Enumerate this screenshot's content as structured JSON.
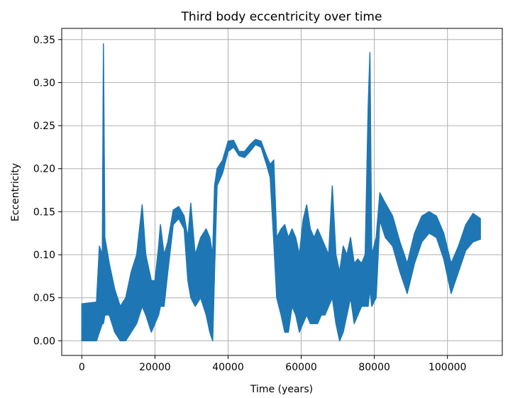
{
  "chart_data": {
    "type": "line",
    "title": "Third body eccentricity over time",
    "xlabel": "Time (years)",
    "ylabel": "Eccentricity",
    "xlim": [
      -5500,
      115000
    ],
    "ylim": [
      -0.017,
      0.363
    ],
    "grid": true,
    "legend": "none",
    "xticks": [
      {
        "value": 0,
        "label": "0"
      },
      {
        "value": 20000,
        "label": "20000"
      },
      {
        "value": 40000,
        "label": "40000"
      },
      {
        "value": 60000,
        "label": "60000"
      },
      {
        "value": 80000,
        "label": "80000"
      },
      {
        "value": 100000,
        "label": "100000"
      }
    ],
    "yticks": [
      {
        "value": 0.0,
        "label": "0.00"
      },
      {
        "value": 0.05,
        "label": "0.05"
      },
      {
        "value": 0.1,
        "label": "0.10"
      },
      {
        "value": 0.15,
        "label": "0.15"
      },
      {
        "value": 0.2,
        "label": "0.20"
      },
      {
        "value": 0.25,
        "label": "0.25"
      },
      {
        "value": 0.3,
        "label": "0.30"
      },
      {
        "value": 0.35,
        "label": "0.35"
      }
    ],
    "series": [
      {
        "color": "#1f77b4",
        "envelope": [
          [
            0,
            0.0,
            0.043
          ],
          [
            2000,
            0.0,
            0.044
          ],
          [
            4000,
            0.0,
            0.045
          ],
          [
            4800,
            0.01,
            0.11
          ],
          [
            5600,
            0.02,
            0.1
          ],
          [
            5900,
            0.02,
            0.345
          ],
          [
            6300,
            0.03,
            0.12
          ],
          [
            7500,
            0.03,
            0.09
          ],
          [
            9000,
            0.01,
            0.06
          ],
          [
            10500,
            0.0,
            0.04
          ],
          [
            12000,
            0.0,
            0.05
          ],
          [
            13500,
            0.01,
            0.08
          ],
          [
            15000,
            0.02,
            0.1
          ],
          [
            16500,
            0.04,
            0.158
          ],
          [
            17500,
            0.03,
            0.1
          ],
          [
            19000,
            0.01,
            0.07
          ],
          [
            20000,
            0.02,
            0.07
          ],
          [
            21000,
            0.03,
            0.11
          ],
          [
            21500,
            0.04,
            0.135
          ],
          [
            22500,
            0.04,
            0.1
          ],
          [
            23500,
            0.08,
            0.115
          ],
          [
            25000,
            0.135,
            0.152
          ],
          [
            26500,
            0.142,
            0.156
          ],
          [
            28000,
            0.13,
            0.145
          ],
          [
            29000,
            0.07,
            0.12
          ],
          [
            29800,
            0.05,
            0.16
          ],
          [
            31000,
            0.04,
            0.1
          ],
          [
            32500,
            0.05,
            0.12
          ],
          [
            34000,
            0.03,
            0.13
          ],
          [
            35000,
            0.01,
            0.12
          ],
          [
            35800,
            0.0,
            0.1
          ],
          [
            36300,
            0.08,
            0.18
          ],
          [
            37000,
            0.18,
            0.2
          ],
          [
            38500,
            0.195,
            0.21
          ],
          [
            40000,
            0.22,
            0.232
          ],
          [
            41500,
            0.225,
            0.233
          ],
          [
            43000,
            0.215,
            0.22
          ],
          [
            44500,
            0.213,
            0.22
          ],
          [
            46000,
            0.22,
            0.228
          ],
          [
            47500,
            0.228,
            0.234
          ],
          [
            49000,
            0.225,
            0.232
          ],
          [
            50500,
            0.205,
            0.215
          ],
          [
            51500,
            0.19,
            0.205
          ],
          [
            52500,
            0.115,
            0.21
          ],
          [
            53300,
            0.05,
            0.12
          ],
          [
            54500,
            0.03,
            0.13
          ],
          [
            55500,
            0.01,
            0.135
          ],
          [
            56500,
            0.01,
            0.12
          ],
          [
            57500,
            0.04,
            0.13
          ],
          [
            58500,
            0.03,
            0.12
          ],
          [
            59500,
            0.01,
            0.1
          ],
          [
            60500,
            0.02,
            0.14
          ],
          [
            61500,
            0.03,
            0.158
          ],
          [
            62500,
            0.02,
            0.13
          ],
          [
            63500,
            0.02,
            0.12
          ],
          [
            64500,
            0.02,
            0.13
          ],
          [
            65500,
            0.03,
            0.12
          ],
          [
            66500,
            0.03,
            0.11
          ],
          [
            67500,
            0.04,
            0.1
          ],
          [
            68500,
            0.05,
            0.18
          ],
          [
            69500,
            0.02,
            0.1
          ],
          [
            70500,
            0.0,
            0.08
          ],
          [
            71500,
            0.01,
            0.11
          ],
          [
            72500,
            0.03,
            0.1
          ],
          [
            73500,
            0.05,
            0.12
          ],
          [
            74500,
            0.02,
            0.09
          ],
          [
            75500,
            0.03,
            0.095
          ],
          [
            76500,
            0.04,
            0.09
          ],
          [
            77500,
            0.04,
            0.1
          ],
          [
            78300,
            0.04,
            0.27
          ],
          [
            78800,
            0.06,
            0.335
          ],
          [
            79300,
            0.04,
            0.1
          ],
          [
            80500,
            0.05,
            0.12
          ],
          [
            81500,
            0.14,
            0.172
          ],
          [
            83000,
            0.12,
            0.16
          ],
          [
            85000,
            0.11,
            0.145
          ],
          [
            87000,
            0.08,
            0.115
          ],
          [
            89000,
            0.055,
            0.09
          ],
          [
            91000,
            0.09,
            0.125
          ],
          [
            93000,
            0.115,
            0.145
          ],
          [
            95000,
            0.125,
            0.15
          ],
          [
            97000,
            0.12,
            0.145
          ],
          [
            99000,
            0.095,
            0.125
          ],
          [
            101000,
            0.055,
            0.09
          ],
          [
            103000,
            0.08,
            0.11
          ],
          [
            105000,
            0.105,
            0.135
          ],
          [
            107000,
            0.115,
            0.148
          ],
          [
            109000,
            0.118,
            0.142
          ]
        ]
      }
    ]
  }
}
